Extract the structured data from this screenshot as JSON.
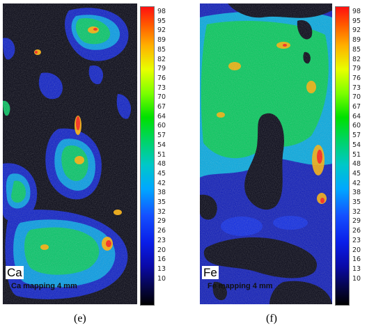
{
  "panels": [
    {
      "id": "e",
      "element": "Ca",
      "caption": "Ca mapping 4 mm",
      "letter": "(e)",
      "colorbar_ticks": [
        "98",
        "95",
        "92",
        "89",
        "85",
        "82",
        "79",
        "76",
        "73",
        "70",
        "67",
        "64",
        "60",
        "57",
        "54",
        "51",
        "48",
        "45",
        "42",
        "38",
        "35",
        "32",
        "29",
        "26",
        "23",
        "20",
        "16",
        "13",
        "10"
      ]
    },
    {
      "id": "f",
      "element": "Fe",
      "caption": "Fe mapping 4 mm",
      "letter": "(f)",
      "colorbar_ticks": [
        "98",
        "95",
        "92",
        "89",
        "85",
        "82",
        "79",
        "76",
        "73",
        "70",
        "67",
        "64",
        "60",
        "57",
        "54",
        "51",
        "48",
        "45",
        "42",
        "38",
        "35",
        "32",
        "29",
        "26",
        "23",
        "20",
        "16",
        "13",
        "10"
      ]
    }
  ],
  "colors": {
    "background_low": "#000010",
    "low": "#0a14c8",
    "mid": "#00b4ff",
    "high_mid": "#00d060",
    "high": "#ffa000",
    "max": "#ff2000"
  }
}
